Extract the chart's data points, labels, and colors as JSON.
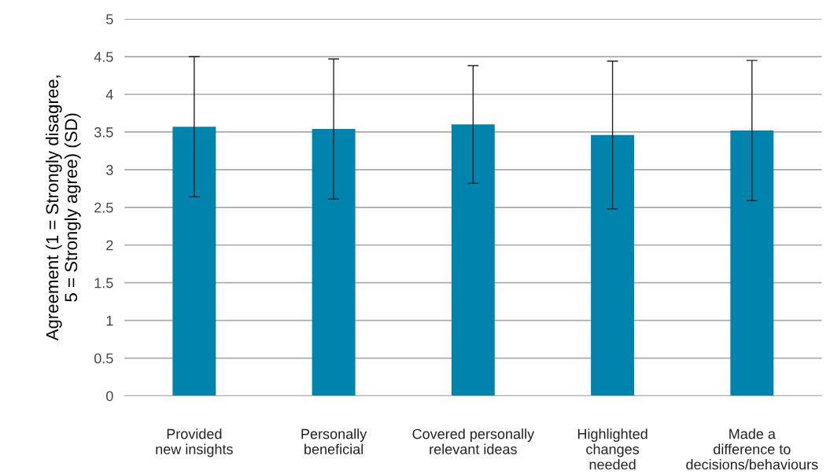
{
  "chart_data": {
    "type": "bar",
    "categories": [
      "Provided\nnew insights",
      "Personally\nbeneficial",
      "Covered personally\nrelevant ideas",
      "Highlighted\nchanges\nneeded",
      "Made a\ndifference to\ndecisions/behaviours"
    ],
    "values": [
      3.57,
      3.54,
      3.6,
      3.46,
      3.52
    ],
    "errors": [
      0.93,
      0.93,
      0.78,
      0.98,
      0.93
    ],
    "color": "#0083ad",
    "ylabel": "Agreement (1 = Strongly disagree,\n5 = Strongly agree) (SD)",
    "ylim": [
      0,
      5
    ],
    "yticks": [
      0,
      0.5,
      1,
      1.5,
      2,
      2.5,
      3,
      3.5,
      4,
      4.5,
      5
    ],
    "grid": "y"
  }
}
